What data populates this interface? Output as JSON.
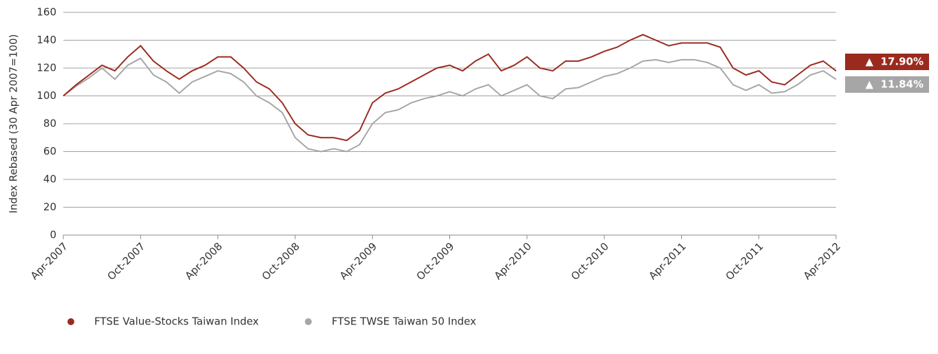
{
  "chart_data": {
    "type": "line",
    "y_label": "Index Rebased (30 Apr 2007=100)",
    "categories": [
      "Apr-2007",
      null,
      null,
      null,
      null,
      null,
      "Oct-2007",
      null,
      null,
      null,
      null,
      null,
      "Apr-2008",
      null,
      null,
      null,
      null,
      null,
      "Oct-2008",
      null,
      null,
      null,
      null,
      null,
      "Apr-2009",
      null,
      null,
      null,
      null,
      null,
      "Oct-2009",
      null,
      null,
      null,
      null,
      null,
      "Apr-2010",
      null,
      null,
      null,
      null,
      null,
      "Oct-2010",
      null,
      null,
      null,
      null,
      null,
      "Apr-2011",
      null,
      null,
      null,
      null,
      null,
      "Oct-2011",
      null,
      null,
      null,
      null,
      null,
      "Apr-2012"
    ],
    "series": [
      {
        "name": "FTSE Value-Stocks Taiwan Index",
        "color": "#9b2a1e",
        "values": [
          100,
          108,
          115,
          122,
          118,
          128,
          136,
          125,
          118,
          112,
          118,
          122,
          128,
          128,
          120,
          110,
          105,
          95,
          80,
          72,
          70,
          70,
          68,
          75,
          95,
          102,
          105,
          110,
          115,
          120,
          122,
          118,
          125,
          130,
          118,
          122,
          128,
          120,
          118,
          125,
          125,
          128,
          132,
          135,
          140,
          144,
          140,
          136,
          138,
          138,
          138,
          135,
          120,
          115,
          118,
          110,
          108,
          115,
          122,
          125,
          117.9
        ]
      },
      {
        "name": "FTSE TWSE Taiwan 50 Index",
        "color": "#a6a6a6",
        "values": [
          100,
          107,
          113,
          120,
          112,
          122,
          127,
          115,
          110,
          102,
          110,
          114,
          118,
          116,
          110,
          100,
          95,
          88,
          70,
          62,
          60,
          62,
          60,
          65,
          80,
          88,
          90,
          95,
          98,
          100,
          103,
          100,
          105,
          108,
          100,
          104,
          108,
          100,
          98,
          105,
          106,
          110,
          114,
          116,
          120,
          125,
          126,
          124,
          126,
          126,
          124,
          120,
          108,
          104,
          108,
          102,
          103,
          108,
          115,
          118,
          111.84
        ]
      }
    ],
    "annotations": [
      "▲  17.90%",
      "▲  11.84%"
    ],
    "ylim": [
      0,
      160
    ],
    "yticks": [
      0,
      20,
      40,
      60,
      80,
      100,
      120,
      140,
      160
    ],
    "grid": true
  }
}
